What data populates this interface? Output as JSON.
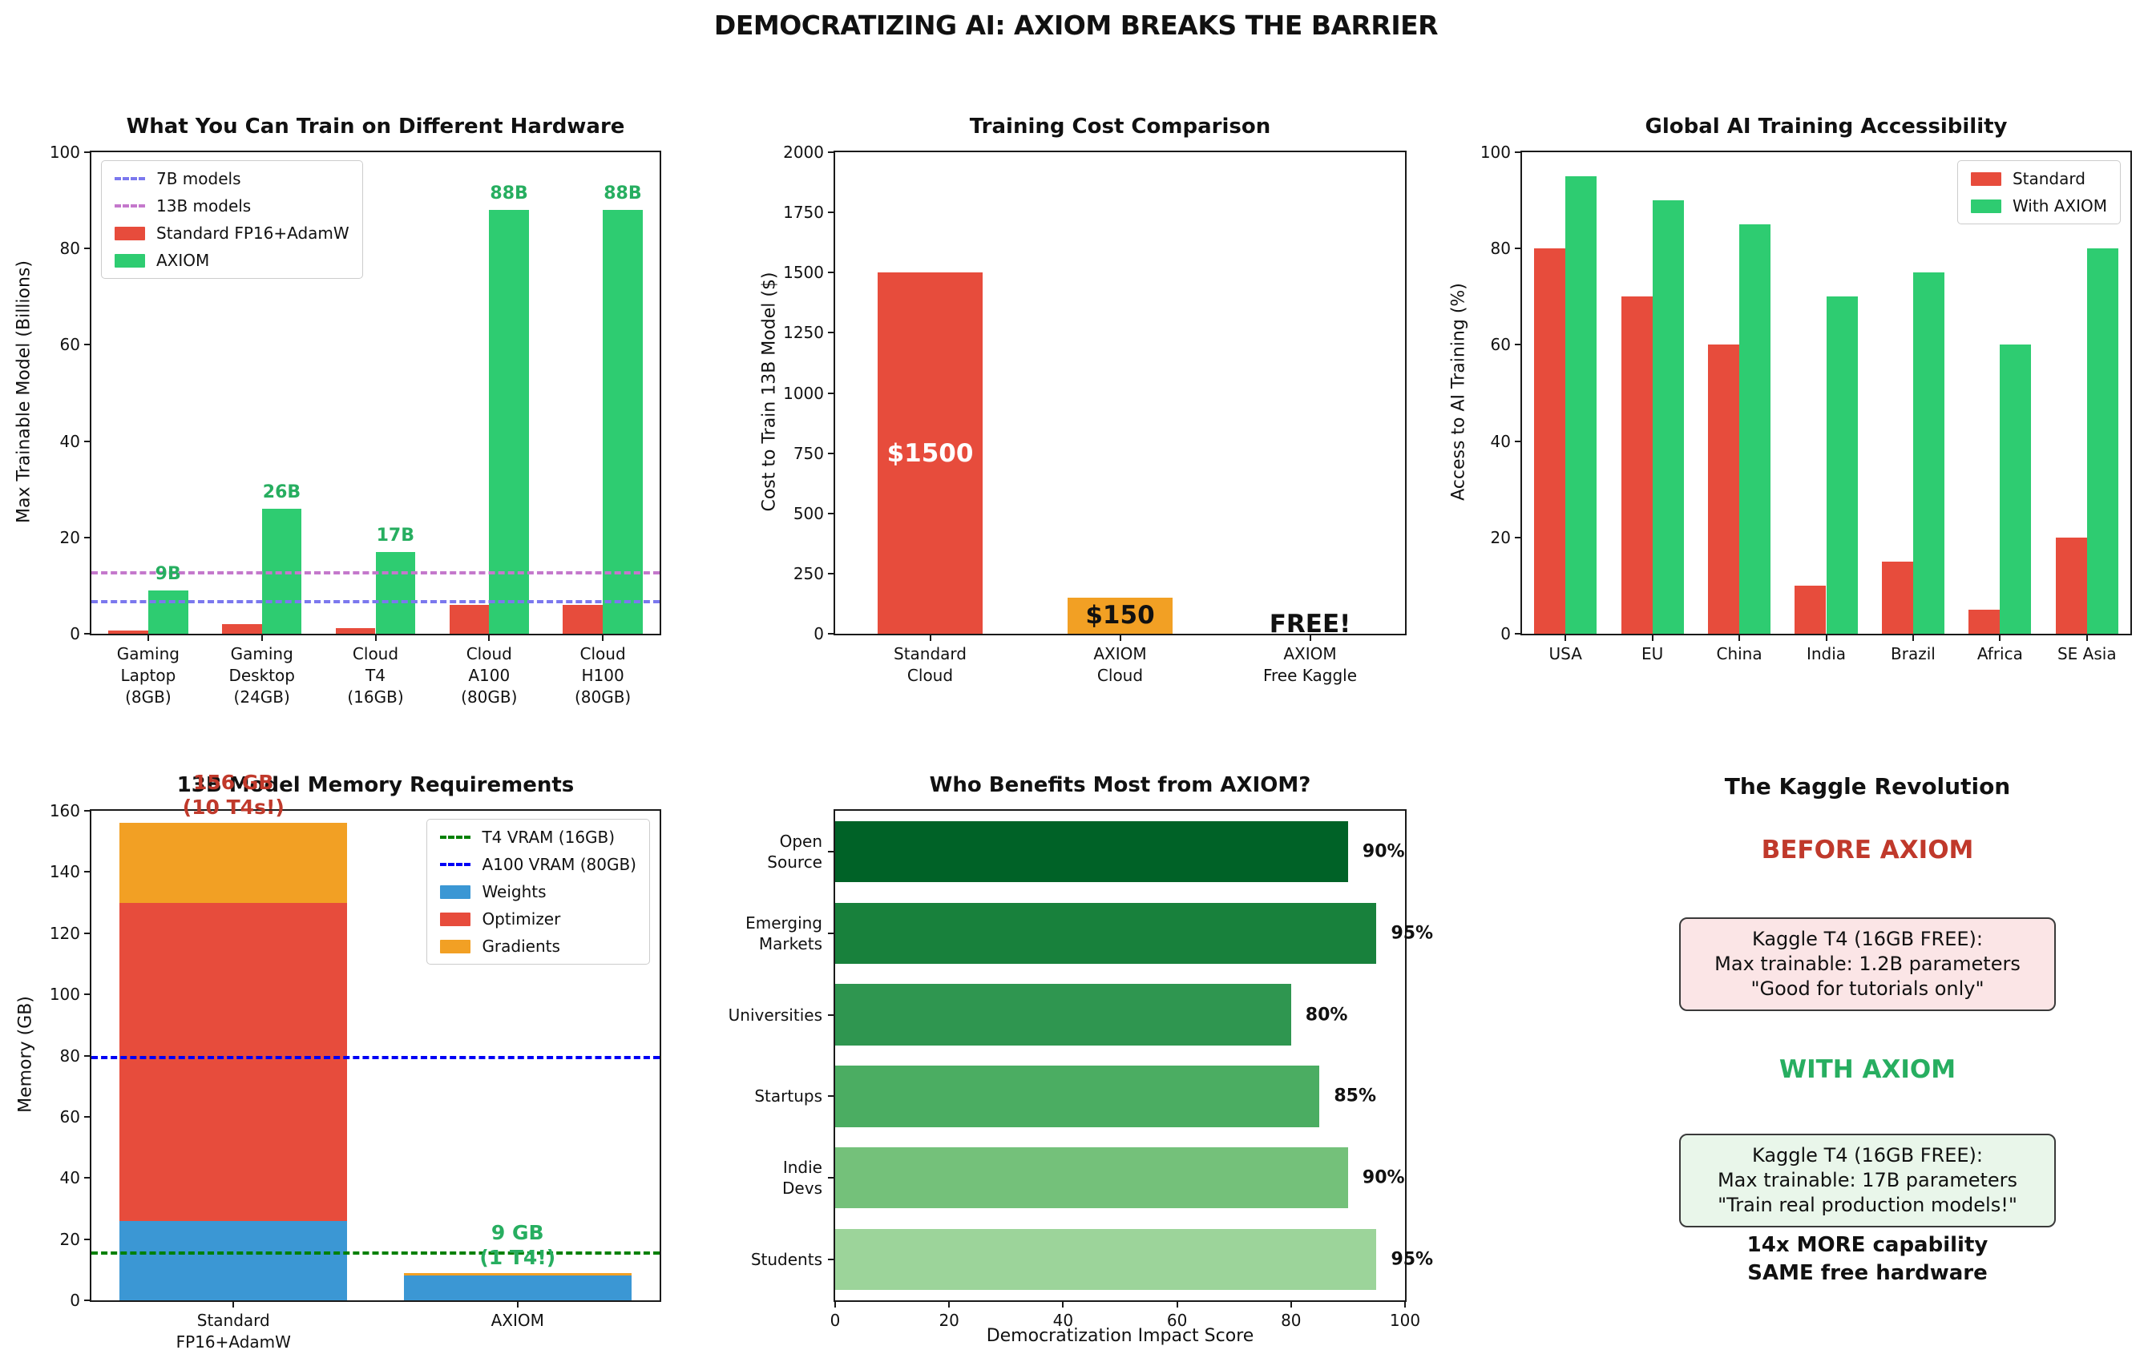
{
  "title": "DEMOCRATIZING AI: AXIOM BREAKS THE BARRIER",
  "chart_data": [
    {
      "id": "hw",
      "type": "bar",
      "title": "What You Can Train on Different Hardware",
      "ylabel": "Max Trainable Model (Billions)",
      "ylim": [
        0,
        100
      ],
      "yticks": [
        0,
        20,
        40,
        60,
        80,
        100
      ],
      "categories": [
        "Gaming\nLaptop\n(8GB)",
        "Gaming\nDesktop\n(24GB)",
        "Cloud\nT4\n(16GB)",
        "Cloud\nA100\n(80GB)",
        "Cloud\nH100\n(80GB)"
      ],
      "series": [
        {
          "name": "Standard FP16+AdamW",
          "color": "#e74c3c",
          "values": [
            0.6,
            2,
            1.2,
            6,
            6
          ]
        },
        {
          "name": "AXIOM",
          "color": "#2ecc71",
          "values": [
            9,
            26,
            17,
            88,
            88
          ],
          "labels": [
            "9B",
            "26B",
            "17B",
            "88B",
            "88B"
          ],
          "label_color": "#27ae60"
        }
      ],
      "hlines": [
        {
          "y": 7,
          "color": "#7b78ee",
          "label": "7B models"
        },
        {
          "y": 13,
          "color": "#c478cc",
          "label": "13B models"
        }
      ],
      "legend_pos": "tl",
      "bar_frac": 0.35
    },
    {
      "id": "cost",
      "type": "bar",
      "title": "Training Cost Comparison",
      "ylabel": "Cost to Train 13B Model ($)",
      "ylim": [
        0,
        2000
      ],
      "yticks": [
        0,
        250,
        500,
        750,
        1000,
        1250,
        1500,
        1750,
        2000
      ],
      "categories": [
        "Standard\nCloud",
        "AXIOM\nCloud",
        "AXIOM\nFree Kaggle"
      ],
      "bars": [
        {
          "value": 1500,
          "color": "#e74c3c",
          "label": "$1500",
          "label_color": "#ffffff",
          "label_pos": "center"
        },
        {
          "value": 150,
          "color": "#f2a024",
          "label": "$150",
          "label_color": "#111111",
          "label_pos": "center"
        },
        {
          "value": 0,
          "color": null,
          "label": "FREE!",
          "label_color": "#111111",
          "label_pos": "axis"
        }
      ],
      "bar_frac": 0.55
    },
    {
      "id": "global",
      "type": "bar",
      "title": "Global AI Training Accessibility",
      "ylabel": "Access to AI Training (%)",
      "ylim": [
        0,
        100
      ],
      "yticks": [
        0,
        20,
        40,
        60,
        80,
        100
      ],
      "categories": [
        "USA",
        "EU",
        "China",
        "India",
        "Brazil",
        "Africa",
        "SE Asia"
      ],
      "series": [
        {
          "name": "Standard",
          "color": "#e74c3c",
          "values": [
            80,
            70,
            60,
            10,
            15,
            5,
            20
          ]
        },
        {
          "name": "With AXIOM",
          "color": "#2ecc71",
          "values": [
            95,
            90,
            85,
            70,
            75,
            60,
            80
          ]
        }
      ],
      "legend_pos": "tr",
      "bar_frac": 0.36
    },
    {
      "id": "mem",
      "type": "stacked",
      "title": "13B Model Memory Requirements",
      "ylabel": "Memory (GB)",
      "ylim": [
        0,
        160
      ],
      "yticks": [
        0,
        20,
        40,
        60,
        80,
        100,
        120,
        140,
        160
      ],
      "categories": [
        "Standard\nFP16+AdamW",
        "AXIOM"
      ],
      "stack_series": [
        {
          "name": "Weights",
          "color": "#3b97d4",
          "values": [
            26,
            8.2
          ]
        },
        {
          "name": "Optimizer",
          "color": "#e74c3c",
          "values": [
            104,
            0
          ]
        },
        {
          "name": "Gradients",
          "color": "#f2a024",
          "values": [
            26,
            0.8
          ]
        }
      ],
      "hlines": [
        {
          "y": 16,
          "color": "#008000",
          "label": "T4 VRAM (16GB)"
        },
        {
          "y": 80,
          "color": "#0000f5",
          "label": "A100 VRAM (80GB)"
        }
      ],
      "annotations": [
        {
          "cat": 0,
          "text": "156 GB\n(10 T4s!)",
          "color": "#c0392b"
        },
        {
          "cat": 1,
          "text": "9 GB\n(1 T4!)",
          "color": "#27ae60"
        }
      ],
      "legend_pos": "tr",
      "bar_frac": 0.8
    },
    {
      "id": "who",
      "type": "hbar",
      "title": "Who Benefits Most from AXIOM?",
      "xlabel": "Democratization Impact Score",
      "xlim": [
        0,
        100
      ],
      "xticks": [
        0,
        20,
        40,
        60,
        80,
        100
      ],
      "categories": [
        "Open\nSource",
        "Emerging\nMarkets",
        "Universities",
        "Startups",
        "Indie\nDevs",
        "Students"
      ],
      "values": [
        90,
        95,
        80,
        85,
        90,
        95
      ],
      "labels": [
        "90%",
        "95%",
        "80%",
        "85%",
        "90%",
        "95%"
      ],
      "colors": [
        "#006227",
        "#18813c",
        "#2f9650",
        "#4bad62",
        "#74c17a",
        "#9cd49a"
      ],
      "bar_frac": 0.75
    }
  ],
  "kaggle": {
    "title": "The Kaggle Revolution",
    "before_heading": "BEFORE AXIOM",
    "before_box": [
      "Kaggle T4 (16GB FREE):",
      "Max trainable: 1.2B parameters",
      "\"Good for tutorials only\""
    ],
    "with_heading": "WITH AXIOM",
    "with_box": [
      "Kaggle T4 (16GB FREE):",
      "Max trainable: 17B parameters",
      "\"Train real production models!\""
    ],
    "footer": [
      "14x MORE capability",
      "SAME free hardware"
    ],
    "colors": {
      "before_heading": "#c0392b",
      "with_heading": "#27ae60",
      "before_bg": "#fbe5e6",
      "with_bg": "#e9f6ea"
    }
  }
}
